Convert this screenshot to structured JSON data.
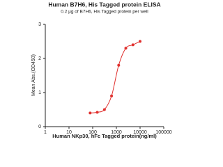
{
  "chart_data": {
    "type": "line",
    "title": "Human B7H6, His Tagged protein ELISA",
    "subtitle": "0.2 μg of B7H6, His Tagged protein per well",
    "x_label": "Human NKp30, hFc Tagged protein(ng/ml)",
    "y_label": "Mean Abs.(OD450)",
    "x_scale": "log",
    "series": [
      {
        "color": "#e0302e",
        "x": [
          78,
          156,
          313,
          625,
          1250,
          2500,
          5000,
          10000
        ],
        "values": [
          0.4,
          0.42,
          0.5,
          0.9,
          1.8,
          2.3,
          2.4,
          2.5
        ]
      }
    ],
    "xlim": [
      1,
      100000
    ],
    "xticks": [
      1,
      10,
      100,
      1000,
      10000,
      100000
    ],
    "ylim": [
      0,
      3
    ],
    "yticks": [
      0,
      1,
      2,
      3
    ]
  }
}
